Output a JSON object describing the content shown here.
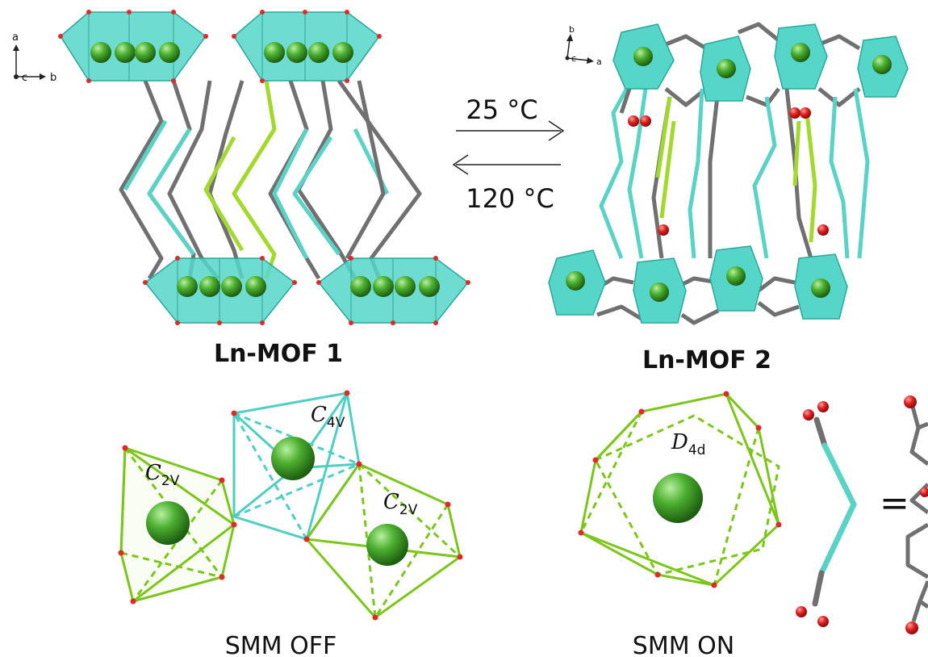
{
  "structures": {
    "mof1_label": "Ln-MOF 1",
    "mof2_label": "Ln-MOF 2"
  },
  "conditions": {
    "forward": "25 °C",
    "reverse": "120 °C"
  },
  "axes": {
    "mof1": {
      "up": "a",
      "out": "c",
      "right": "b"
    },
    "mof2": {
      "up": "b",
      "out": "c",
      "right": "a"
    }
  },
  "states": {
    "off_label": "SMM OFF",
    "on_label": "SMM ON"
  },
  "symmetry": {
    "c4v": {
      "main": "C",
      "sub": "4V"
    },
    "c2v_left": {
      "main": "C",
      "sub": "2V"
    },
    "c2v_right": {
      "main": "C",
      "sub": "2V"
    },
    "d4d": {
      "main": "D",
      "sub": "4d"
    }
  },
  "legend": {
    "equals": "="
  },
  "colors": {
    "polyhedron": "#56d6c9",
    "polyhedron_edge": "#2aa89a",
    "metal": "#3a9a2a",
    "oxygen": "#e02a2a",
    "carbon": "#707070",
    "linker_cyan": "#5ad3c6",
    "linker_green": "#a3d92e",
    "green_edge": "#7cc61c"
  }
}
